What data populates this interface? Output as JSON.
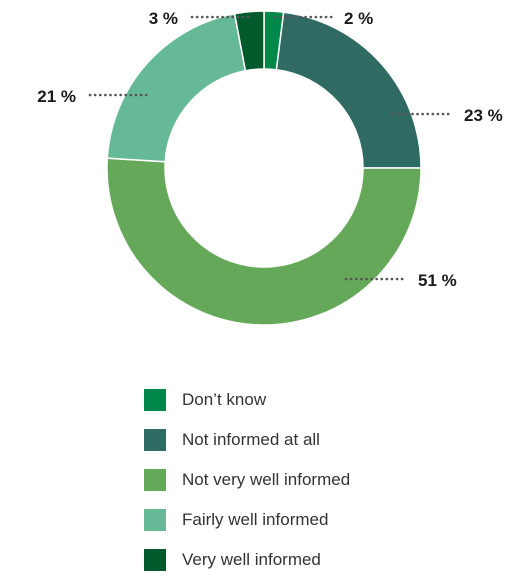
{
  "chart_data": {
    "type": "pie",
    "title": "",
    "donut": true,
    "categories": [
      "Don’t know",
      "Not informed at all",
      "Not very well informed",
      "Fairly well informed",
      "Very well informed"
    ],
    "values": [
      2,
      23,
      51,
      21,
      3
    ],
    "labels": [
      "2 %",
      "23 %",
      "51 %",
      "21 %",
      "3 %"
    ],
    "colors": [
      "#00884a",
      "#2f6b63",
      "#66a85a",
      "#66b996",
      "#005a2c"
    ],
    "legend_position": "bottom"
  }
}
